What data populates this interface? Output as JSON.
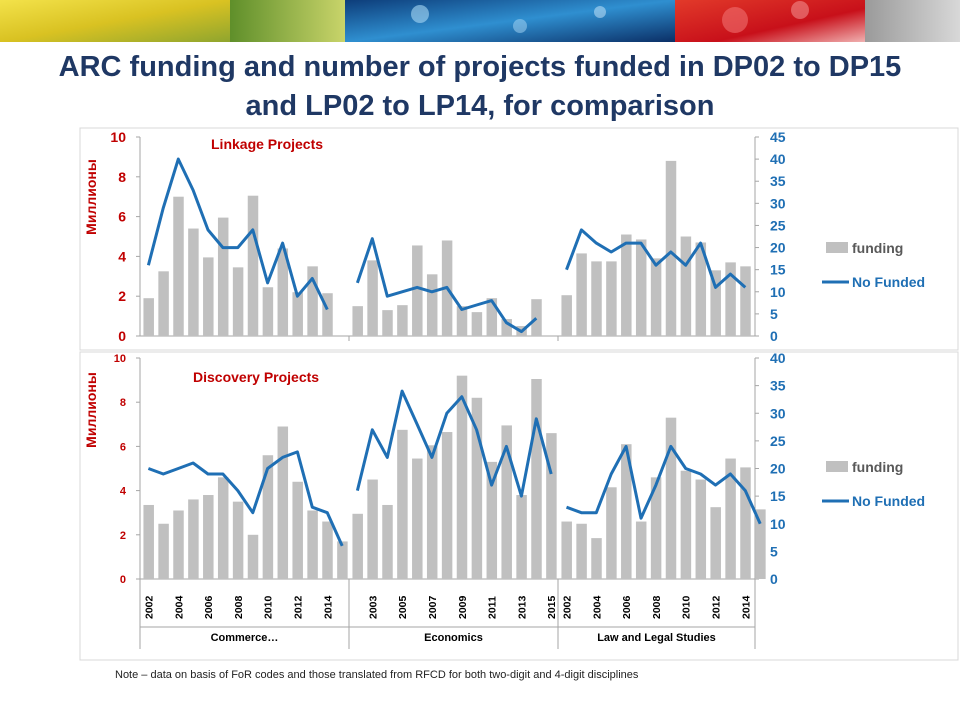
{
  "slide": {
    "title_line1": "ARC funding and number of projects funded in DP02 to DP15",
    "title_line2": "and LP02 to LP14, for comparison",
    "note": "Note – data on basis of FoR codes and those translated from RFCD for both two-digit and 4-digit disciplines"
  },
  "colors": {
    "bar": "#c0c0c0",
    "line": "#1f6fb4",
    "red_text": "#c00000",
    "axis_right": "#1f6fb4",
    "title": "#1f3864"
  },
  "chart_data": [
    {
      "type": "bar+line",
      "annotation": "Linkage Projects",
      "ylabel_left": "Миллионы",
      "ylim_left": [
        0,
        10
      ],
      "yticks_left": [
        0,
        2,
        4,
        6,
        8,
        10
      ],
      "ylim_right": [
        0,
        45
      ],
      "yticks_right": [
        0,
        5,
        10,
        15,
        20,
        25,
        30,
        35,
        40,
        45
      ],
      "legend": [
        "funding",
        "No Funded"
      ],
      "legend_position": "right",
      "groups": [
        {
          "name": "Commerce…",
          "years": [
            2002,
            2003,
            2004,
            2005,
            2006,
            2007,
            2008,
            2009,
            2010,
            2011,
            2012,
            2013,
            2014
          ],
          "funding": [
            1.9,
            3.25,
            7.0,
            5.4,
            3.95,
            5.95,
            3.45,
            7.05,
            2.45,
            4.4,
            2.2,
            3.5,
            2.15
          ],
          "projects": [
            16,
            29,
            40,
            33,
            24,
            20,
            20,
            24,
            12,
            21,
            9,
            13,
            6
          ]
        },
        {
          "name": "Economics",
          "years": [
            2002,
            2003,
            2004,
            2005,
            2006,
            2007,
            2008,
            2009,
            2010,
            2011,
            2012,
            2013,
            2014
          ],
          "funding": [
            1.5,
            3.8,
            1.3,
            1.55,
            4.55,
            3.1,
            4.8,
            1.5,
            1.2,
            1.9,
            0.85,
            0.5,
            1.85
          ],
          "projects": [
            12,
            22,
            9,
            10,
            11,
            10,
            11,
            6,
            7,
            8,
            3,
            1,
            4
          ]
        },
        {
          "name": "Law and Legal Studies",
          "years": [
            2002,
            2003,
            2004,
            2005,
            2006,
            2007,
            2008,
            2009,
            2010,
            2011,
            2012,
            2013,
            2014
          ],
          "funding": [
            2.05,
            4.15,
            3.75,
            3.75,
            5.1,
            4.85,
            3.9,
            8.8,
            5.0,
            4.7,
            3.3,
            3.7,
            3.5
          ],
          "projects": [
            15,
            24,
            21,
            19,
            21,
            21,
            16,
            19,
            16,
            21,
            11,
            14,
            11
          ]
        }
      ]
    },
    {
      "type": "bar+line",
      "annotation": "Discovery Projects",
      "ylabel_left": "Миллионы",
      "ylim_left": [
        0,
        10
      ],
      "yticks_left": [
        0,
        2,
        4,
        6,
        8,
        10
      ],
      "ylim_right": [
        0,
        40
      ],
      "yticks_right": [
        0,
        5,
        10,
        15,
        20,
        25,
        30,
        35,
        40
      ],
      "legend": [
        "funding",
        "No Funded"
      ],
      "legend_position": "right",
      "x_tick_labels_shown": [
        "2002",
        "2004",
        "2006",
        "2008",
        "2010",
        "2012",
        "2014",
        "2003",
        "2005",
        "2007",
        "2009",
        "2011",
        "2013",
        "2015",
        "2002",
        "2004",
        "2006",
        "2008",
        "2010",
        "2012",
        "2014"
      ],
      "groups": [
        {
          "name": "Commerce…",
          "years": [
            2002,
            2003,
            2004,
            2005,
            2006,
            2007,
            2008,
            2009,
            2010,
            2011,
            2012,
            2013,
            2014,
            2015
          ],
          "funding": [
            3.35,
            2.5,
            3.1,
            3.6,
            3.8,
            4.6,
            3.5,
            2.0,
            5.6,
            6.9,
            4.4,
            3.1,
            2.6,
            1.7
          ],
          "projects": [
            20,
            19,
            20,
            21,
            19,
            19,
            16,
            12,
            20,
            22,
            23,
            13,
            12,
            6
          ]
        },
        {
          "name": "Economics",
          "years": [
            2002,
            2003,
            2004,
            2005,
            2006,
            2007,
            2008,
            2009,
            2010,
            2011,
            2012,
            2013,
            2014,
            2015
          ],
          "funding": [
            2.95,
            4.5,
            3.35,
            6.75,
            5.45,
            6.05,
            6.65,
            9.2,
            8.2,
            5.3,
            6.95,
            3.8,
            9.05,
            6.6
          ],
          "projects": [
            16,
            27,
            22,
            34,
            28,
            22,
            30,
            33,
            27,
            17,
            24,
            15,
            29,
            19
          ]
        },
        {
          "name": "Law and Legal Studies",
          "years": [
            2002,
            2003,
            2004,
            2005,
            2006,
            2007,
            2008,
            2009,
            2010,
            2011,
            2012,
            2013,
            2014,
            2015
          ],
          "funding": [
            2.6,
            2.5,
            1.85,
            4.15,
            6.1,
            2.6,
            4.6,
            7.3,
            4.9,
            4.5,
            3.25,
            5.45,
            5.05,
            3.15
          ],
          "projects": [
            13,
            12,
            12,
            19,
            24,
            11,
            17,
            24,
            20,
            19,
            17,
            19,
            16,
            10
          ]
        }
      ]
    }
  ]
}
